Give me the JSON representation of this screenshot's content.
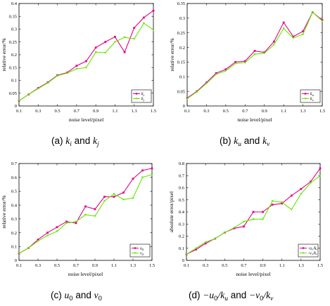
{
  "colors": {
    "series1": "#e6008a",
    "series2": "#66e600"
  },
  "chart_data": [
    {
      "id": "a",
      "type": "line",
      "x": [
        0.1,
        0.2,
        0.3,
        0.4,
        0.5,
        0.6,
        0.7,
        0.8,
        0.9,
        1.0,
        1.1,
        1.2,
        1.3,
        1.4,
        1.5
      ],
      "xlabel": "noise level/pixel",
      "ylabel": "relative error/%",
      "xlim": [
        0.1,
        1.5
      ],
      "ylim": [
        0,
        0.4
      ],
      "xticks": [
        "0.1",
        "0.3",
        "0.5",
        "0.7",
        "0.9",
        "1.1",
        "1.3",
        "1.5"
      ],
      "yticks": [
        "0",
        "0.05",
        "0.1",
        "0.15",
        "0.2",
        "0.25",
        "0.3",
        "0.35",
        "0.4"
      ],
      "series": [
        {
          "name": "k",
          "sub": "i",
          "marker": "square",
          "values": [
            0.02,
            0.045,
            0.07,
            0.092,
            0.12,
            0.13,
            0.157,
            0.175,
            0.228,
            0.25,
            0.27,
            0.21,
            0.305,
            0.345,
            0.372
          ]
        },
        {
          "name": "k",
          "sub": "j",
          "marker": "triangle",
          "values": [
            0.02,
            0.045,
            0.068,
            0.09,
            0.118,
            0.128,
            0.145,
            0.15,
            0.21,
            0.208,
            0.25,
            0.268,
            0.262,
            0.323,
            0.297
          ]
        }
      ],
      "legend": "bottom-right",
      "caption_prefix": "(a)",
      "caption_sym1": "k",
      "caption_sub1": "i",
      "caption_and": "and",
      "caption_sym2": "k",
      "caption_sub2": "j"
    },
    {
      "id": "b",
      "type": "line",
      "x": [
        0.1,
        0.2,
        0.3,
        0.4,
        0.5,
        0.6,
        0.7,
        0.8,
        0.9,
        1.0,
        1.1,
        1.2,
        1.3,
        1.4,
        1.5
      ],
      "xlabel": "noise level/pixel",
      "ylabel": "relative error/%",
      "xlim": [
        0.1,
        1.5
      ],
      "ylim": [
        0,
        0.35
      ],
      "xticks": [
        "0.1",
        "0.3",
        "0.5",
        "0.7",
        "0.9",
        "1.1",
        "1.3",
        "1.5"
      ],
      "yticks": [
        "0",
        "0.05",
        "0.1",
        "0.15",
        "0.2",
        "0.25",
        "0.3",
        "0.35"
      ],
      "series": [
        {
          "name": "k",
          "sub": "u",
          "marker": "square",
          "values": [
            0.027,
            0.05,
            0.08,
            0.112,
            0.125,
            0.15,
            0.153,
            0.188,
            0.183,
            0.22,
            0.285,
            0.237,
            0.255,
            0.32,
            0.293
          ]
        },
        {
          "name": "k",
          "sub": "v",
          "marker": "triangle",
          "values": [
            0.025,
            0.048,
            0.077,
            0.108,
            0.12,
            0.145,
            0.148,
            0.177,
            0.18,
            0.21,
            0.265,
            0.232,
            0.245,
            0.32,
            0.29
          ]
        }
      ],
      "legend": "bottom-right",
      "caption_prefix": "(b)",
      "caption_sym1": "k",
      "caption_sub1": "u",
      "caption_and": "and",
      "caption_sym2": "k",
      "caption_sub2": "v"
    },
    {
      "id": "c",
      "type": "line",
      "x": [
        0.1,
        0.2,
        0.3,
        0.4,
        0.5,
        0.6,
        0.7,
        0.8,
        0.9,
        1.0,
        1.1,
        1.2,
        1.3,
        1.4,
        1.5
      ],
      "xlabel": "noise level/pixel",
      "ylabel": "relative error/%",
      "xlim": [
        0.1,
        1.5
      ],
      "ylim": [
        0,
        0.7
      ],
      "xticks": [
        "0.1",
        "0.3",
        "0.5",
        "0.7",
        "0.9",
        "1.1",
        "1.3",
        "1.5"
      ],
      "yticks": [
        "0",
        "0.1",
        "0.2",
        "0.3",
        "0.4",
        "0.5",
        "0.6",
        "0.7"
      ],
      "series": [
        {
          "name": "u",
          "sub": "0",
          "marker": "square",
          "values": [
            0.05,
            0.09,
            0.15,
            0.2,
            0.24,
            0.28,
            0.27,
            0.39,
            0.37,
            0.46,
            0.46,
            0.49,
            0.59,
            0.65,
            0.665
          ]
        },
        {
          "name": "v",
          "sub": "0",
          "marker": "triangle",
          "values": [
            0.05,
            0.09,
            0.14,
            0.18,
            0.21,
            0.27,
            0.28,
            0.33,
            0.32,
            0.43,
            0.48,
            0.44,
            0.45,
            0.6,
            0.62
          ]
        }
      ],
      "legend": "bottom-right",
      "caption_prefix": "(c)",
      "caption_sym1": "u",
      "caption_sub1": "0",
      "caption_and": "and",
      "caption_sym2": "v",
      "caption_sub2": "0"
    },
    {
      "id": "d",
      "type": "line",
      "x": [
        0.1,
        0.2,
        0.3,
        0.4,
        0.5,
        0.6,
        0.7,
        0.8,
        0.9,
        1.0,
        1.1,
        1.2,
        1.3,
        1.4,
        1.5
      ],
      "xlabel": "noise level/pixel",
      "ylabel": "absolute error/pixel",
      "xlim": [
        0.1,
        1.5
      ],
      "ylim": [
        0,
        0.8
      ],
      "xticks": [
        "0.1",
        "0.3",
        "0.5",
        "0.7",
        "0.9",
        "1.1",
        "1.3",
        "1.5"
      ],
      "yticks": [
        "0",
        "0.1",
        "0.2",
        "0.3",
        "0.4",
        "0.5",
        "0.6",
        "0.7",
        "0.8"
      ],
      "series": [
        {
          "name": "-u₀/kᵤ",
          "marker": "square",
          "values": [
            0.05,
            0.09,
            0.14,
            0.18,
            0.23,
            0.265,
            0.28,
            0.4,
            0.4,
            0.46,
            0.47,
            0.535,
            0.59,
            0.65,
            0.76
          ]
        },
        {
          "name": "-v₀/kᵥ",
          "marker": "triangle",
          "values": [
            0.05,
            0.1,
            0.15,
            0.18,
            0.23,
            0.27,
            0.32,
            0.34,
            0.34,
            0.49,
            0.48,
            0.42,
            0.55,
            0.64,
            0.7
          ]
        }
      ],
      "legend": "bottom-right",
      "caption_prefix": "(d)",
      "caption_sym1": "−u",
      "caption_sub1": "0",
      "caption_frac1": "/k",
      "caption_sub1b": "u",
      "caption_and": "and",
      "caption_sym2": "−v",
      "caption_sub2": "0",
      "caption_frac2": "/k",
      "caption_sub2b": "v"
    }
  ]
}
